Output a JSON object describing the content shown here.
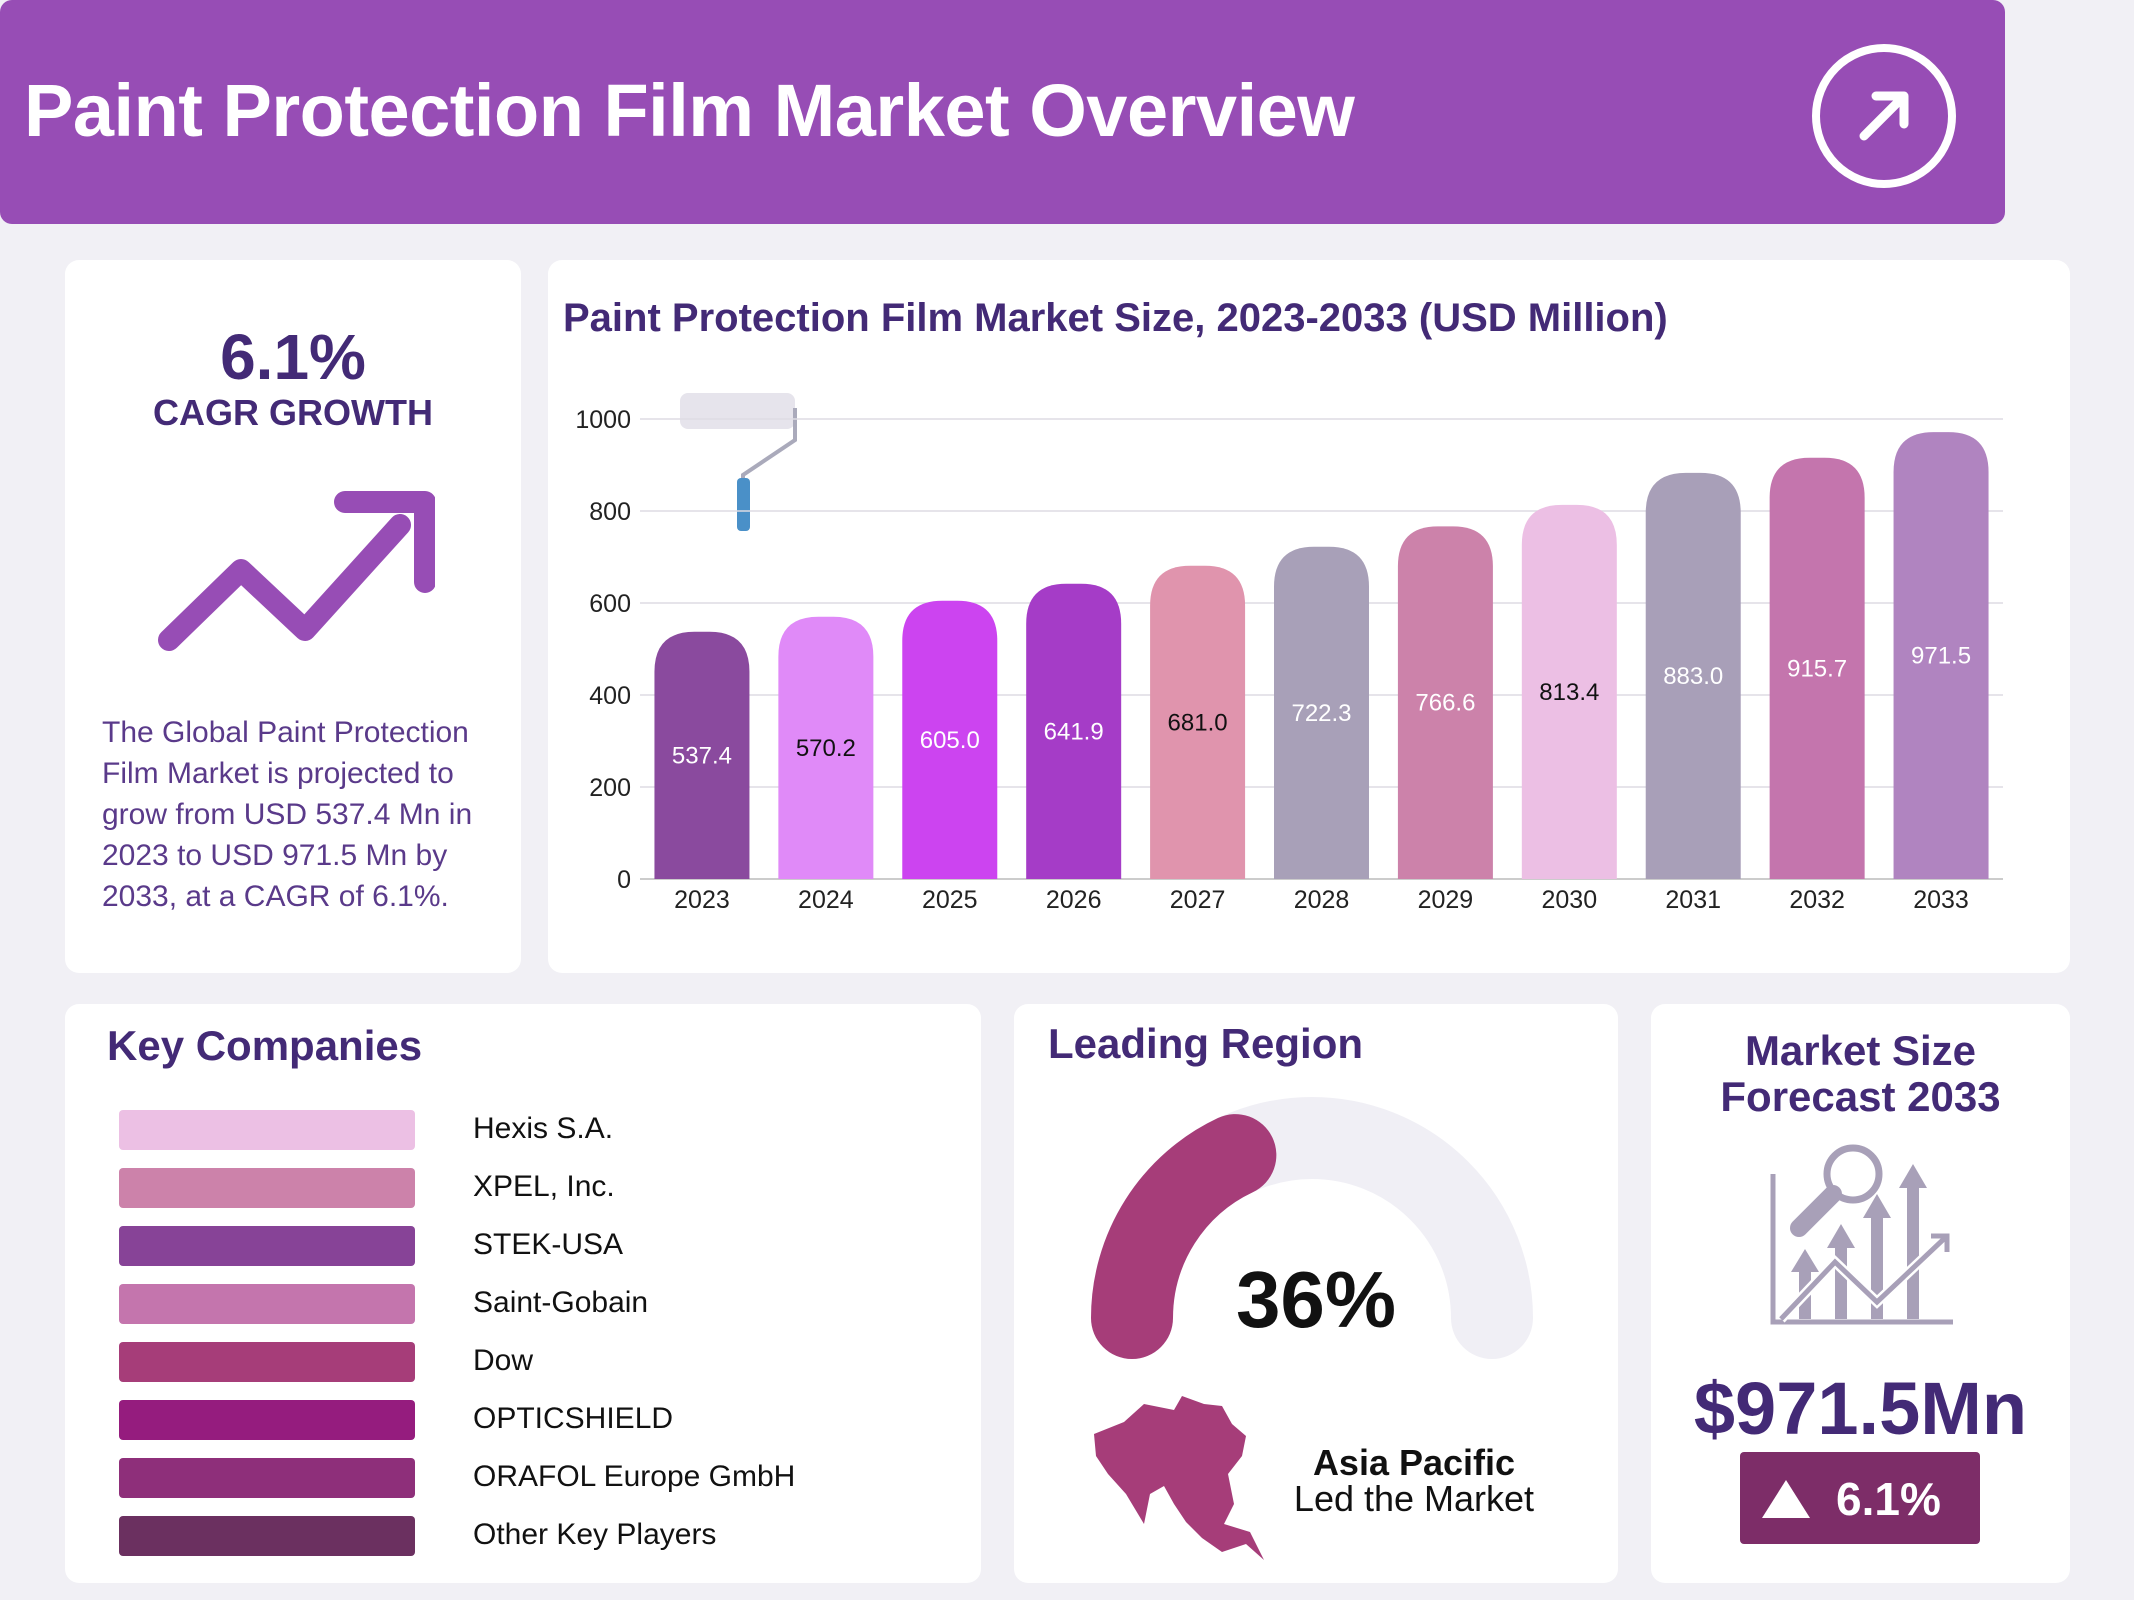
{
  "header": {
    "title": "Paint Protection Film Market Overview",
    "icon": "arrow-up-right-circle-icon"
  },
  "cagr": {
    "value": "6.1%",
    "label": "CAGR GROWTH",
    "icon": "trend-up-arrow-icon",
    "description": "The Global Paint Protection Film Market is projected to grow from USD 537.4 Mn in 2023 to USD 971.5 Mn by 2033, at a CAGR of 6.1%."
  },
  "chart_data": {
    "type": "bar",
    "title": "Paint Protection Film Market Size, 2023-2033 (USD Million)",
    "categories": [
      "2023",
      "2024",
      "2025",
      "2026",
      "2027",
      "2028",
      "2029",
      "2030",
      "2031",
      "2032",
      "2033"
    ],
    "values": [
      537.4,
      570.2,
      605.0,
      641.9,
      681.0,
      722.3,
      766.6,
      813.4,
      883.0,
      915.7,
      971.5
    ],
    "value_labels": [
      "537.4",
      "570.2",
      "605.0",
      "641.9",
      "681.0",
      "722.3",
      "766.6",
      "813.4",
      "883.0",
      "915.7",
      "971.5"
    ],
    "colors": [
      "#8a4a9e",
      "#e08af8",
      "#cc44f0",
      "#a53cc7",
      "#e094ad",
      "#a8a0b8",
      "#cc82aa",
      "#ecbfe4",
      "#a89fb8",
      "#c475ad",
      "#b084c0"
    ],
    "label_colors": [
      "#ffffff",
      "#111111",
      "#ffffff",
      "#ffffff",
      "#111111",
      "#ffffff",
      "#ffffff",
      "#111111",
      "#ffffff",
      "#ffffff",
      "#ffffff"
    ],
    "ylim": [
      0,
      1000
    ],
    "yticks": [
      0,
      200,
      400,
      600,
      800,
      1000
    ],
    "grid": true,
    "decoration": "paint-roller-icon"
  },
  "key_companies": {
    "title": "Key Companies",
    "items": [
      {
        "name": "Hexis S.A.",
        "color": "#ecc0e4"
      },
      {
        "name": "XPEL, Inc.",
        "color": "#cc82aa"
      },
      {
        "name": "STEK-USA",
        "color": "#874397"
      },
      {
        "name": "Saint-Gobain",
        "color": "#c475ad"
      },
      {
        "name": "Dow",
        "color": "#a63d79"
      },
      {
        "name": "OPTICSHIELD",
        "color": "#951c7e"
      },
      {
        "name": "ORAFOL Europe GmbH",
        "color": "#8e2f7a"
      },
      {
        "name": "Other Key Players",
        "color": "#6b3060"
      }
    ]
  },
  "leading_region": {
    "title": "Leading Region",
    "percent_label": "36%",
    "share": 36,
    "region": "Asia Pacific",
    "subtitle": "Led the Market",
    "gauge_color": "#a63d79",
    "track_color": "#f0eff5",
    "map_icon": "asia-pacific-map-icon"
  },
  "market_size": {
    "title_line1": "Market Size",
    "title_line2": "Forecast 2033",
    "value": "$971.5Mn",
    "growth": "6.1%",
    "icon": "magnifier-growth-chart-icon",
    "badge_color": "#7d2d68"
  }
}
